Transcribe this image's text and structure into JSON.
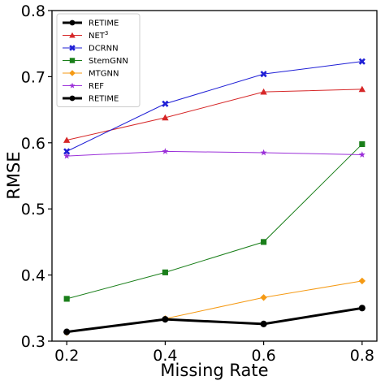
{
  "chart_data": {
    "type": "line",
    "x": [
      0.2,
      0.4,
      0.6,
      0.8
    ],
    "x_tick_labels": [
      "0.2",
      "0.4",
      "0.6",
      "0.8"
    ],
    "y_tick_labels": [
      "0.3",
      "0.4",
      "0.5",
      "0.6",
      "0.7",
      "0.8"
    ],
    "y_ticks": [
      0.3,
      0.4,
      0.5,
      0.6,
      0.7,
      0.8
    ],
    "xlim": [
      0.17,
      0.83
    ],
    "ylim": [
      0.3,
      0.8
    ],
    "xlabel": "Missing Rate",
    "ylabel": "RMSE",
    "title": "",
    "grid": false,
    "legend_position": "top-left",
    "series": [
      {
        "name": "NET",
        "name_superscript": "3",
        "color": "#d62728",
        "marker": "triangle",
        "values": [
          0.604,
          0.638,
          0.677,
          0.681
        ]
      },
      {
        "name": "DCRNN",
        "color": "#1f1fd6",
        "marker": "x",
        "values": [
          0.587,
          0.659,
          0.704,
          0.723
        ]
      },
      {
        "name": "StemGNN",
        "color": "#1a7f1a",
        "marker": "square",
        "values": [
          0.364,
          0.404,
          0.45,
          0.598
        ]
      },
      {
        "name": "MTGNN",
        "color": "#f59a14",
        "marker": "diamond",
        "values": [
          0.313,
          0.334,
          0.366,
          0.391
        ]
      },
      {
        "name": "REF",
        "color": "#9b30d9",
        "marker": "star",
        "values": [
          0.58,
          0.587,
          0.585,
          0.582
        ]
      },
      {
        "name": "RETIME",
        "color": "#000000",
        "marker": "circle",
        "bold": true,
        "values": [
          0.314,
          0.333,
          0.326,
          0.35
        ]
      }
    ],
    "legend_entries": [
      {
        "label": "RETIME",
        "series": 5
      },
      {
        "label": "NET",
        "sup": "3",
        "series": 0
      },
      {
        "label": "DCRNN",
        "series": 1
      },
      {
        "label": "StemGNN",
        "series": 2
      },
      {
        "label": "MTGNN",
        "series": 3
      },
      {
        "label": "REF",
        "series": 4
      },
      {
        "label": "RETIME",
        "series": 5
      }
    ]
  }
}
